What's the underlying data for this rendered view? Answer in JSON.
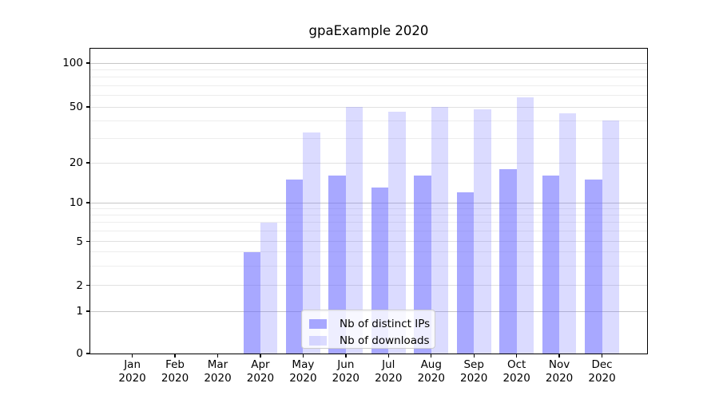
{
  "chart_data": {
    "type": "bar",
    "title": "gpaExample 2020",
    "categories": [
      "Jan 2020",
      "Feb 2020",
      "Mar 2020",
      "Apr 2020",
      "May 2020",
      "Jun 2020",
      "Jul 2020",
      "Aug 2020",
      "Sep 2020",
      "Oct 2020",
      "Nov 2020",
      "Dec 2020"
    ],
    "x_tick_labels": [
      {
        "line1": "Jan",
        "line2": "2020"
      },
      {
        "line1": "Feb",
        "line2": "2020"
      },
      {
        "line1": "Mar",
        "line2": "2020"
      },
      {
        "line1": "Apr",
        "line2": "2020"
      },
      {
        "line1": "May",
        "line2": "2020"
      },
      {
        "line1": "Jun",
        "line2": "2020"
      },
      {
        "line1": "Jul",
        "line2": "2020"
      },
      {
        "line1": "Aug",
        "line2": "2020"
      },
      {
        "line1": "Sep",
        "line2": "2020"
      },
      {
        "line1": "Oct",
        "line2": "2020"
      },
      {
        "line1": "Nov",
        "line2": "2020"
      },
      {
        "line1": "Dec",
        "line2": "2020"
      }
    ],
    "series": [
      {
        "name": "Nb of distinct IPs",
        "color": "#a8a8f6",
        "values": [
          0,
          0,
          0,
          4,
          15,
          16,
          13,
          16,
          12,
          18,
          16,
          15
        ]
      },
      {
        "name": "Nb of downloads",
        "color": "#dbdbfa",
        "values": [
          0,
          0,
          0,
          7,
          33,
          50,
          46,
          50,
          48,
          58,
          45,
          40
        ]
      }
    ],
    "y_axis": {
      "scale": "log-like",
      "tick_values": [
        0,
        1,
        2,
        5,
        10,
        20,
        50,
        100
      ],
      "tick_labels": [
        "0",
        "1",
        "2",
        "5",
        "10",
        "20",
        "50",
        "100"
      ],
      "minor_tick_values": [
        3,
        4,
        6,
        7,
        8,
        9,
        30,
        40,
        60,
        70,
        80,
        90
      ],
      "ylim": [
        0,
        126
      ]
    },
    "legend": {
      "position": "lower center inside",
      "entries": [
        "Nb of distinct IPs",
        "Nb of downloads"
      ]
    },
    "grid": true
  },
  "colors": {
    "grid_strong": "#c7c7c7",
    "grid_major": "#e1e1e1",
    "grid_minor": "#ededed",
    "legend_border": "#cccccc",
    "text": "#000000"
  }
}
